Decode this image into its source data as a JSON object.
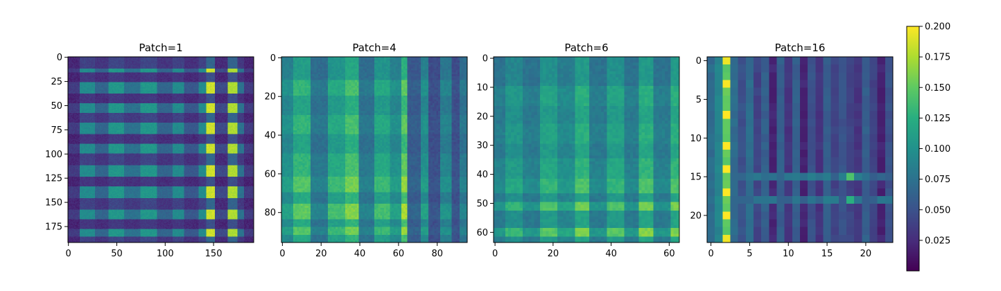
{
  "chart_data": [
    {
      "type": "heatmap",
      "title": "Patch=1",
      "size": 192,
      "xticks": [
        0,
        50,
        100,
        150
      ],
      "yticks": [
        0,
        25,
        50,
        75,
        100,
        125,
        150,
        175
      ],
      "pattern": {
        "base": 0.015,
        "column_bands": [
          [
            0,
            0.02
          ],
          [
            12,
            0.08
          ],
          [
            28,
            0.05
          ],
          [
            42,
            0.09
          ],
          [
            58,
            0.06
          ],
          [
            75,
            0.09
          ],
          [
            92,
            0.05
          ],
          [
            108,
            0.08
          ],
          [
            120,
            0.04
          ],
          [
            135,
            0.08
          ],
          [
            143,
            0.17
          ],
          [
            152,
            0.03
          ],
          [
            165,
            0.16
          ],
          [
            175,
            0.06
          ],
          [
            182,
            0.02
          ]
        ],
        "row_bands": [
          [
            0,
            0.3
          ],
          [
            12,
            1.0
          ],
          [
            16,
            0.2
          ],
          [
            26,
            1.0
          ],
          [
            38,
            0.2
          ],
          [
            48,
            1.0
          ],
          [
            58,
            0.3
          ],
          [
            68,
            1.0
          ],
          [
            80,
            0.2
          ],
          [
            90,
            1.0
          ],
          [
            100,
            0.3
          ],
          [
            112,
            1.0
          ],
          [
            124,
            0.2
          ],
          [
            134,
            1.0
          ],
          [
            146,
            0.3
          ],
          [
            158,
            1.0
          ],
          [
            168,
            0.2
          ],
          [
            178,
            1.0
          ],
          [
            186,
            0.3
          ]
        ]
      }
    },
    {
      "type": "heatmap",
      "title": "Patch=4",
      "size": 96,
      "xticks": [
        0,
        20,
        40,
        60,
        80
      ],
      "yticks": [
        0,
        20,
        40,
        60,
        80
      ],
      "pattern": {
        "base": 0.03,
        "column_bands": [
          [
            0,
            0.07
          ],
          [
            6,
            0.1
          ],
          [
            15,
            0.05
          ],
          [
            24,
            0.09
          ],
          [
            33,
            0.11
          ],
          [
            40,
            0.05
          ],
          [
            48,
            0.09
          ],
          [
            56,
            0.07
          ],
          [
            62,
            0.12
          ],
          [
            65,
            0.03
          ],
          [
            72,
            0.07
          ],
          [
            76,
            0.02
          ],
          [
            82,
            0.06
          ],
          [
            88,
            0.02
          ],
          [
            92,
            0.05
          ]
        ],
        "row_bands": [
          [
            0,
            0.8
          ],
          [
            12,
            1.0
          ],
          [
            20,
            0.85
          ],
          [
            30,
            1.0
          ],
          [
            40,
            0.85
          ],
          [
            50,
            1.0
          ],
          [
            62,
            1.15
          ],
          [
            70,
            0.9
          ],
          [
            76,
            1.2
          ],
          [
            84,
            0.9
          ],
          [
            88,
            1.15
          ],
          [
            92,
            0.9
          ]
        ]
      }
    },
    {
      "type": "heatmap",
      "title": "Patch=6",
      "size": 64,
      "xticks": [
        0,
        20,
        40,
        60
      ],
      "yticks": [
        0,
        10,
        20,
        30,
        40,
        50,
        60
      ],
      "pattern": {
        "base": 0.035,
        "column_bands": [
          [
            0,
            0.05
          ],
          [
            4,
            0.07
          ],
          [
            10,
            0.05
          ],
          [
            16,
            0.08
          ],
          [
            22,
            0.06
          ],
          [
            28,
            0.09
          ],
          [
            33,
            0.05
          ],
          [
            39,
            0.08
          ],
          [
            45,
            0.05
          ],
          [
            50,
            0.09
          ],
          [
            55,
            0.05
          ],
          [
            61,
            0.09
          ]
        ],
        "row_bands": [
          [
            0,
            0.8
          ],
          [
            10,
            1.0
          ],
          [
            17,
            0.9
          ],
          [
            23,
            1.0
          ],
          [
            30,
            0.9
          ],
          [
            35,
            1.05
          ],
          [
            42,
            1.2
          ],
          [
            47,
            0.9
          ],
          [
            50,
            1.35
          ],
          [
            53,
            0.9
          ],
          [
            59,
            1.4
          ],
          [
            62,
            0.9
          ]
        ]
      }
    },
    {
      "type": "heatmap",
      "title": "Patch=16",
      "size": 24,
      "xticks": [
        0,
        5,
        10,
        15,
        20
      ],
      "yticks": [
        0,
        5,
        10,
        15,
        20
      ],
      "pattern": {
        "base": 0.04,
        "columns": [
          0.07,
          0.09,
          0.17,
          0.07,
          0.05,
          0.07,
          0.04,
          0.06,
          0.02,
          0.06,
          0.03,
          0.06,
          0.02,
          0.05,
          0.03,
          0.06,
          0.04,
          0.05,
          0.04,
          0.03,
          0.06,
          0.04,
          0.02,
          0.05
        ],
        "bright_rows_col2": [
          0,
          3,
          7,
          11,
          14,
          17,
          20,
          23
        ],
        "cross_rows": [
          15,
          18
        ],
        "hot_cells": [
          [
            15,
            18,
            0.14
          ],
          [
            18,
            18,
            0.13
          ]
        ]
      }
    }
  ],
  "colorbar": {
    "vmin": 0.0,
    "vmax": 0.2,
    "ticks": [
      "0.025",
      "0.050",
      "0.075",
      "0.100",
      "0.125",
      "0.150",
      "0.175",
      "0.200"
    ],
    "colormap": "viridis"
  }
}
